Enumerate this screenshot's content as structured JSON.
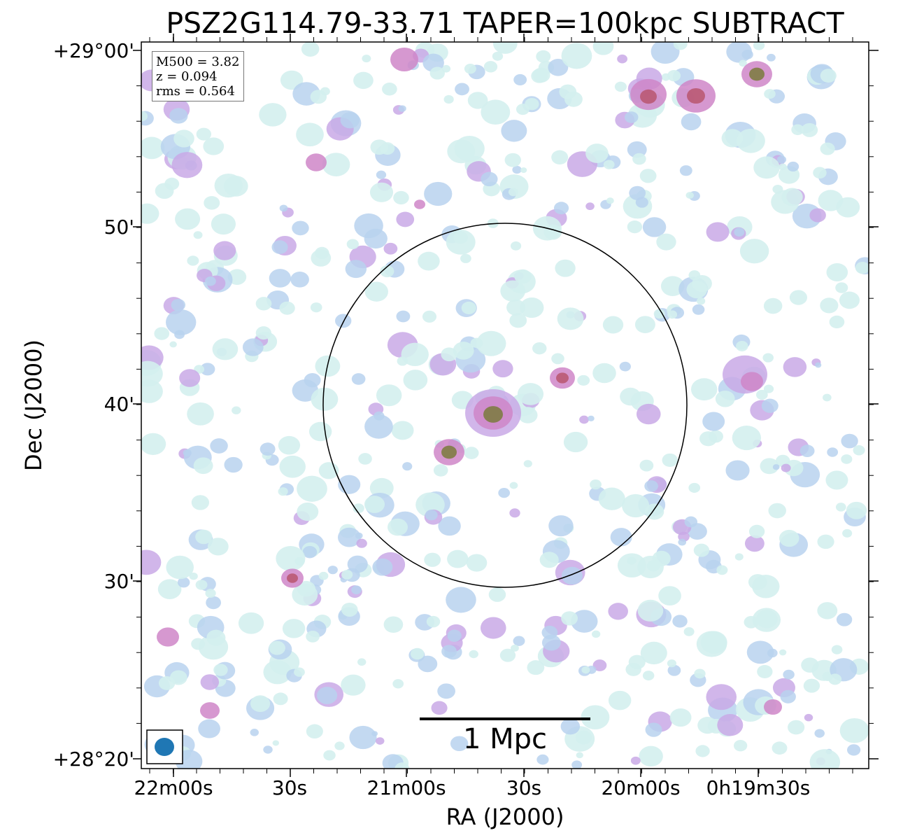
{
  "title": "PSZ2G114.79-33.71 TAPER=100kpc SUBTRACT",
  "axes": {
    "xlabel": "RA (J2000)",
    "ylabel": "Dec (J2000)",
    "x_ticks": [
      "22m00s",
      "30s",
      "21m00s",
      "30s",
      "20m00s",
      "0h19m30s"
    ],
    "y_ticks": [
      "+29°00'",
      "50'",
      "40'",
      "30'",
      "+28°20'"
    ]
  },
  "info": {
    "m500": "M500 = 3.82",
    "z": "z = 0.094",
    "rms": "rms = 0.564"
  },
  "scalebar": {
    "label": "1 Mpc"
  },
  "beam": {
    "color": "#1f77b4"
  },
  "image": {
    "colormap": [
      "#d4f0ee",
      "#b9d2ef",
      "#c9a9e6",
      "#cf86c8",
      "#b8566e",
      "#7a7a3c"
    ],
    "circle_color": "#000000",
    "sources": [
      {
        "name": "central-source",
        "peak": 1.0
      },
      {
        "name": "compact-source-sw",
        "peak": 1.0
      },
      {
        "name": "source-ne",
        "peak": 0.8
      },
      {
        "name": "top-right-sources",
        "peak": 0.95
      }
    ]
  }
}
